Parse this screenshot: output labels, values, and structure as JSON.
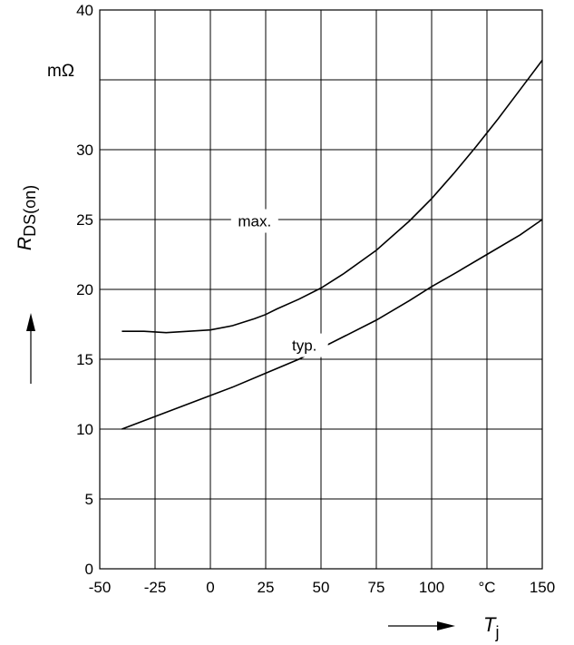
{
  "chart_data": {
    "type": "line",
    "x_ticks": [
      "-50",
      "-25",
      "0",
      "25",
      "50",
      "75",
      "100",
      "°C",
      "150"
    ],
    "y_ticks": [
      "0",
      "5",
      "10",
      "15",
      "20",
      "25",
      "30",
      "",
      "40"
    ],
    "y_unit": "mΩ",
    "ylabel": {
      "symbol": "R",
      "subscript": "DS(on)"
    },
    "xlabel": {
      "symbol": "T",
      "subscript": "j"
    },
    "xlim": [
      -50,
      150
    ],
    "ylim": [
      0,
      40
    ],
    "grid": true,
    "series": [
      {
        "name": "max.",
        "x": [
          -40,
          -30,
          -20,
          -10,
          0,
          10,
          20,
          25,
          30,
          40,
          50,
          60,
          75,
          90,
          100,
          110,
          120,
          130,
          140,
          150
        ],
        "y": [
          17.0,
          17.0,
          16.9,
          17.0,
          17.1,
          17.4,
          17.9,
          18.2,
          18.6,
          19.3,
          20.1,
          21.1,
          22.8,
          24.9,
          26.5,
          28.3,
          30.2,
          32.2,
          34.3,
          36.4
        ]
      },
      {
        "name": "typ.",
        "x": [
          -40,
          -25,
          -10,
          0,
          10,
          25,
          40,
          50,
          60,
          75,
          90,
          100,
          110,
          125,
          140,
          150
        ],
        "y": [
          10.0,
          10.9,
          11.8,
          12.4,
          13.0,
          14.0,
          15.0,
          15.8,
          16.6,
          17.8,
          19.2,
          20.2,
          21.1,
          22.5,
          23.9,
          25.0
        ]
      }
    ]
  }
}
